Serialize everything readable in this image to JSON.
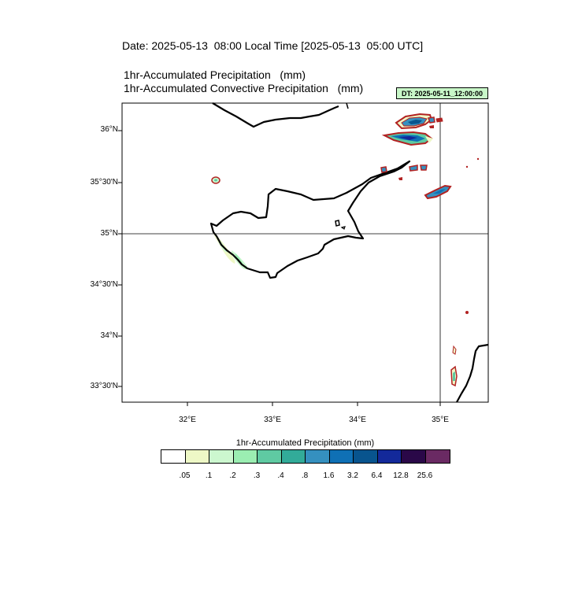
{
  "header": {
    "date_line": "Date: 2025-05-13  08:00 Local Time [2025-05-13  05:00 UTC]",
    "field_1": "1hr-Accumulated Precipitation   (mm)",
    "field_2": "1hr-Accumulated Convective Precipitation   (mm)",
    "dt_label": "DT: 2025-05-11_12:00:00"
  },
  "map": {
    "lat_labels": [
      "36°N",
      "35°30'N",
      "35°N",
      "34°30'N",
      "34°N",
      "33°30'N"
    ],
    "lon_labels": [
      "32°E",
      "33°E",
      "34°E",
      "35°E"
    ],
    "reference_lat": "35°N",
    "reference_lon": "35°E",
    "coastline_color": "#000000",
    "convective_contour_color": "#b22222"
  },
  "colorbar": {
    "title": "1hr-Accumulated Precipitation  (mm)",
    "colors": [
      "#ffffff",
      "#eef8c6",
      "#ccf7cf",
      "#9beeb2",
      "#5fcaa2",
      "#32ab99",
      "#3590bf",
      "#0f70b5",
      "#08548e",
      "#13299a",
      "#2a0848",
      "#6a2a63"
    ],
    "labels": [
      ".05",
      ".1",
      ".2",
      ".3",
      ".4",
      ".8",
      "1.6",
      "3.2",
      "6.4",
      "12.8",
      "25.6"
    ]
  }
}
